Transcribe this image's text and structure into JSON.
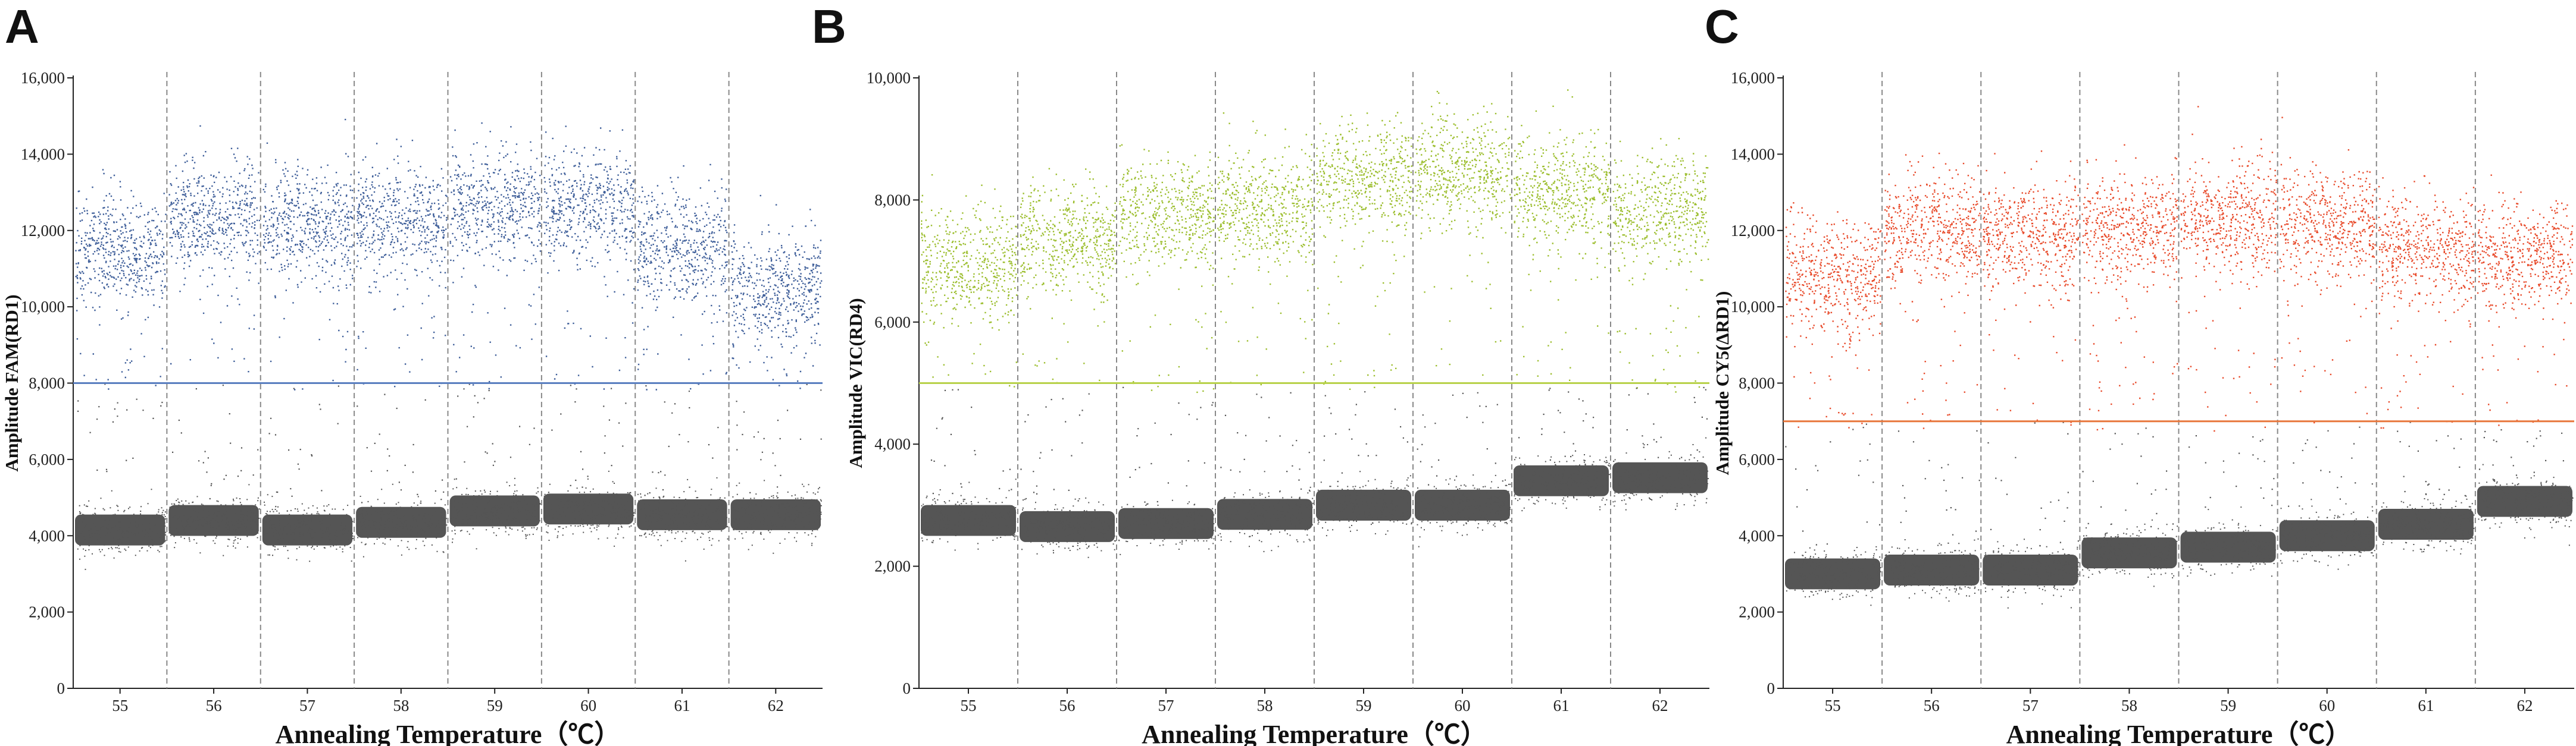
{
  "chart_data": [
    {
      "type": "scatter",
      "panel_label": "A",
      "xlabel": "Annealing Temperature（℃）",
      "ylabel": "Amplitude FAM(RD1)",
      "categories": [
        "55",
        "56",
        "57",
        "58",
        "59",
        "60",
        "61",
        "62"
      ],
      "yticks": [
        "0",
        "2,000",
        "4,000",
        "6,000",
        "8,000",
        "10,000",
        "12,000",
        "14,000",
        "16,000"
      ],
      "ylim": [
        0,
        16000
      ],
      "threshold": 8000,
      "positive_color": "#3f5f9a",
      "threshold_color": "#5a7fc0",
      "negative_color": "#555555",
      "grid": false,
      "series": [
        {
          "values": [
            11500,
            12400,
            12200,
            12300,
            12700,
            12700,
            11600,
            10500
          ]
        },
        {
          "values": [
            4150,
            4400,
            4150,
            4350,
            4650,
            4700,
            4550,
            4550
          ]
        }
      ]
    },
    {
      "type": "scatter",
      "panel_label": "B",
      "xlabel": "Annealing Temperature（℃）",
      "ylabel": "Amplitude VIC(RD4)",
      "categories": [
        "55",
        "56",
        "57",
        "58",
        "59",
        "60",
        "61",
        "62"
      ],
      "yticks": [
        "0",
        "2,000",
        "4,000",
        "6,000",
        "8,000",
        "10,000"
      ],
      "ylim": [
        0,
        10000
      ],
      "threshold": 5000,
      "positive_color": "#9cbe2e",
      "threshold_color": "#b8d24a",
      "negative_color": "#555555",
      "grid": false,
      "series": [
        {
          "values": [
            6950,
            7350,
            7800,
            7900,
            8400,
            8450,
            8150,
            7850
          ]
        },
        {
          "values": [
            2750,
            2650,
            2700,
            2850,
            3000,
            3000,
            3400,
            3450
          ]
        }
      ]
    },
    {
      "type": "scatter",
      "panel_label": "C",
      "xlabel": "Annealing Temperature（℃）",
      "ylabel": "Amplitude CY5(ΔRD1)",
      "categories": [
        "55",
        "56",
        "57",
        "58",
        "59",
        "60",
        "61",
        "62"
      ],
      "yticks": [
        "0",
        "2,000",
        "4,000",
        "6,000",
        "8,000",
        "10,000",
        "12,000",
        "14,000",
        "16,000"
      ],
      "ylim": [
        0,
        16000
      ],
      "threshold": 7000,
      "positive_color": "#e84a2a",
      "threshold_color": "#e8783e",
      "negative_color": "#555555",
      "grid": false,
      "series": [
        {
          "values": [
            10900,
            12000,
            11900,
            12100,
            12300,
            12200,
            11500,
            11400
          ]
        },
        {
          "values": [
            3000,
            3100,
            3100,
            3550,
            3700,
            4000,
            4300,
            4900
          ]
        }
      ]
    }
  ]
}
